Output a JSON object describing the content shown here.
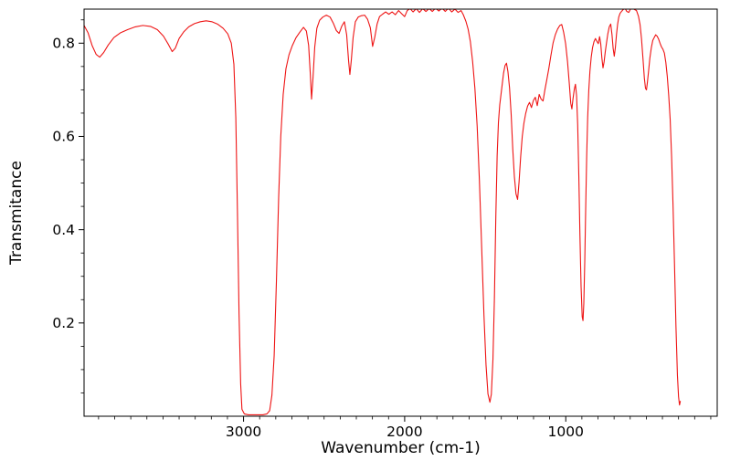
{
  "figure": {
    "background": "#ffffff",
    "frame_color": "#000000",
    "text_color": "#000000"
  },
  "chart_data": {
    "type": "line",
    "title": "",
    "xlabel": "Wavenumber (cm-1)",
    "ylabel": "Transmitance",
    "x_reversed": true,
    "xlim": [
      3990,
      60
    ],
    "ylim": [
      0,
      0.873
    ],
    "grid": false,
    "legend": "none",
    "xticks": [
      {
        "value": 3000,
        "label": "3000"
      },
      {
        "value": 2000,
        "label": "2000"
      },
      {
        "value": 1000,
        "label": "1000"
      }
    ],
    "yticks": [
      {
        "value": 0.2,
        "label": "0.2"
      },
      {
        "value": 0.4,
        "label": "0.4"
      },
      {
        "value": 0.6,
        "label": "0.6"
      },
      {
        "value": 0.8,
        "label": "0.8"
      }
    ],
    "x_minor_step": 100,
    "y_minor_step": 0.05,
    "line_color": "#ee1414",
    "series": [
      {
        "points": [
          [
            3990,
            0.838
          ],
          [
            3965,
            0.822
          ],
          [
            3940,
            0.795
          ],
          [
            3915,
            0.776
          ],
          [
            3893,
            0.77
          ],
          [
            3868,
            0.78
          ],
          [
            3840,
            0.796
          ],
          [
            3805,
            0.812
          ],
          [
            3765,
            0.822
          ],
          [
            3720,
            0.829
          ],
          [
            3672,
            0.835
          ],
          [
            3625,
            0.838
          ],
          [
            3578,
            0.836
          ],
          [
            3535,
            0.829
          ],
          [
            3497,
            0.815
          ],
          [
            3466,
            0.797
          ],
          [
            3443,
            0.782
          ],
          [
            3424,
            0.789
          ],
          [
            3400,
            0.81
          ],
          [
            3372,
            0.824
          ],
          [
            3340,
            0.835
          ],
          [
            3305,
            0.842
          ],
          [
            3268,
            0.846
          ],
          [
            3232,
            0.848
          ],
          [
            3197,
            0.846
          ],
          [
            3162,
            0.841
          ],
          [
            3127,
            0.832
          ],
          [
            3098,
            0.82
          ],
          [
            3076,
            0.8
          ],
          [
            3060,
            0.755
          ],
          [
            3048,
            0.64
          ],
          [
            3038,
            0.44
          ],
          [
            3028,
            0.22
          ],
          [
            3018,
            0.07
          ],
          [
            3010,
            0.015
          ],
          [
            2995,
            0.005
          ],
          [
            2970,
            0.003
          ],
          [
            2940,
            0.003
          ],
          [
            2910,
            0.003
          ],
          [
            2880,
            0.003
          ],
          [
            2855,
            0.005
          ],
          [
            2838,
            0.012
          ],
          [
            2824,
            0.045
          ],
          [
            2810,
            0.13
          ],
          [
            2796,
            0.29
          ],
          [
            2782,
            0.47
          ],
          [
            2769,
            0.6
          ],
          [
            2754,
            0.69
          ],
          [
            2737,
            0.745
          ],
          [
            2718,
            0.775
          ],
          [
            2697,
            0.795
          ],
          [
            2674,
            0.812
          ],
          [
            2650,
            0.824
          ],
          [
            2628,
            0.834
          ],
          [
            2610,
            0.826
          ],
          [
            2596,
            0.795
          ],
          [
            2585,
            0.73
          ],
          [
            2578,
            0.68
          ],
          [
            2569,
            0.725
          ],
          [
            2558,
            0.792
          ],
          [
            2545,
            0.832
          ],
          [
            2528,
            0.849
          ],
          [
            2508,
            0.856
          ],
          [
            2486,
            0.86
          ],
          [
            2463,
            0.856
          ],
          [
            2443,
            0.843
          ],
          [
            2424,
            0.827
          ],
          [
            2407,
            0.821
          ],
          [
            2391,
            0.836
          ],
          [
            2374,
            0.846
          ],
          [
            2360,
            0.818
          ],
          [
            2348,
            0.762
          ],
          [
            2340,
            0.733
          ],
          [
            2331,
            0.764
          ],
          [
            2320,
            0.812
          ],
          [
            2306,
            0.846
          ],
          [
            2288,
            0.856
          ],
          [
            2268,
            0.859
          ],
          [
            2248,
            0.86
          ],
          [
            2230,
            0.851
          ],
          [
            2213,
            0.833
          ],
          [
            2199,
            0.793
          ],
          [
            2186,
            0.812
          ],
          [
            2171,
            0.841
          ],
          [
            2156,
            0.857
          ],
          [
            2138,
            0.862
          ],
          [
            2118,
            0.867
          ],
          [
            2098,
            0.862
          ],
          [
            2078,
            0.867
          ],
          [
            2058,
            0.861
          ],
          [
            2038,
            0.87
          ],
          [
            2018,
            0.863
          ],
          [
            2000,
            0.857
          ],
          [
            1984,
            0.87
          ],
          [
            1966,
            0.874
          ],
          [
            1948,
            0.867
          ],
          [
            1928,
            0.874
          ],
          [
            1908,
            0.866
          ],
          [
            1888,
            0.874
          ],
          [
            1868,
            0.868
          ],
          [
            1848,
            0.874
          ],
          [
            1828,
            0.868
          ],
          [
            1808,
            0.875
          ],
          [
            1788,
            0.869
          ],
          [
            1768,
            0.875
          ],
          [
            1748,
            0.868
          ],
          [
            1728,
            0.875
          ],
          [
            1708,
            0.867
          ],
          [
            1688,
            0.873
          ],
          [
            1668,
            0.866
          ],
          [
            1650,
            0.87
          ],
          [
            1636,
            0.861
          ],
          [
            1620,
            0.847
          ],
          [
            1606,
            0.83
          ],
          [
            1592,
            0.803
          ],
          [
            1578,
            0.76
          ],
          [
            1564,
            0.703
          ],
          [
            1550,
            0.622
          ],
          [
            1536,
            0.505
          ],
          [
            1522,
            0.362
          ],
          [
            1508,
            0.218
          ],
          [
            1495,
            0.11
          ],
          [
            1483,
            0.048
          ],
          [
            1471,
            0.03
          ],
          [
            1462,
            0.047
          ],
          [
            1452,
            0.122
          ],
          [
            1443,
            0.252
          ],
          [
            1434,
            0.43
          ],
          [
            1426,
            0.558
          ],
          [
            1418,
            0.63
          ],
          [
            1410,
            0.667
          ],
          [
            1402,
            0.69
          ],
          [
            1394,
            0.713
          ],
          [
            1386,
            0.736
          ],
          [
            1377,
            0.752
          ],
          [
            1368,
            0.757
          ],
          [
            1359,
            0.739
          ],
          [
            1349,
            0.704
          ],
          [
            1339,
            0.648
          ],
          [
            1329,
            0.573
          ],
          [
            1319,
            0.514
          ],
          [
            1309,
            0.477
          ],
          [
            1299,
            0.465
          ],
          [
            1290,
            0.502
          ],
          [
            1280,
            0.556
          ],
          [
            1270,
            0.6
          ],
          [
            1260,
            0.628
          ],
          [
            1249,
            0.649
          ],
          [
            1237,
            0.665
          ],
          [
            1225,
            0.673
          ],
          [
            1213,
            0.662
          ],
          [
            1201,
            0.677
          ],
          [
            1189,
            0.684
          ],
          [
            1177,
            0.666
          ],
          [
            1165,
            0.69
          ],
          [
            1153,
            0.68
          ],
          [
            1141,
            0.676
          ],
          [
            1129,
            0.701
          ],
          [
            1117,
            0.723
          ],
          [
            1105,
            0.746
          ],
          [
            1093,
            0.772
          ],
          [
            1079,
            0.8
          ],
          [
            1065,
            0.818
          ],
          [
            1051,
            0.83
          ],
          [
            1037,
            0.838
          ],
          [
            1025,
            0.84
          ],
          [
            1013,
            0.823
          ],
          [
            1001,
            0.799
          ],
          [
            989,
            0.76
          ],
          [
            978,
            0.713
          ],
          [
            969,
            0.671
          ],
          [
            962,
            0.659
          ],
          [
            955,
            0.681
          ],
          [
            947,
            0.701
          ],
          [
            940,
            0.712
          ],
          [
            933,
            0.688
          ],
          [
            926,
            0.625
          ],
          [
            919,
            0.516
          ],
          [
            912,
            0.387
          ],
          [
            905,
            0.278
          ],
          [
            898,
            0.213
          ],
          [
            893,
            0.205
          ],
          [
            888,
            0.242
          ],
          [
            882,
            0.333
          ],
          [
            876,
            0.452
          ],
          [
            870,
            0.56
          ],
          [
            864,
            0.641
          ],
          [
            857,
            0.7
          ],
          [
            850,
            0.74
          ],
          [
            842,
            0.77
          ],
          [
            834,
            0.79
          ],
          [
            825,
            0.803
          ],
          [
            816,
            0.81
          ],
          [
            807,
            0.804
          ],
          [
            798,
            0.799
          ],
          [
            790,
            0.814
          ],
          [
            783,
            0.799
          ],
          [
            776,
            0.769
          ],
          [
            769,
            0.747
          ],
          [
            762,
            0.76
          ],
          [
            755,
            0.781
          ],
          [
            747,
            0.801
          ],
          [
            739,
            0.82
          ],
          [
            730,
            0.835
          ],
          [
            721,
            0.841
          ],
          [
            713,
            0.818
          ],
          [
            706,
            0.789
          ],
          [
            699,
            0.772
          ],
          [
            692,
            0.791
          ],
          [
            685,
            0.819
          ],
          [
            678,
            0.841
          ],
          [
            671,
            0.856
          ],
          [
            663,
            0.864
          ],
          [
            654,
            0.868
          ],
          [
            644,
            0.872
          ],
          [
            633,
            0.875
          ],
          [
            621,
            0.868
          ],
          [
            609,
            0.866
          ],
          [
            597,
            0.874
          ],
          [
            585,
            0.875
          ],
          [
            573,
            0.872
          ],
          [
            561,
            0.87
          ],
          [
            549,
            0.858
          ],
          [
            539,
            0.84
          ],
          [
            530,
            0.81
          ],
          [
            521,
            0.768
          ],
          [
            512,
            0.724
          ],
          [
            505,
            0.703
          ],
          [
            499,
            0.7
          ],
          [
            493,
            0.717
          ],
          [
            486,
            0.74
          ],
          [
            478,
            0.768
          ],
          [
            469,
            0.79
          ],
          [
            460,
            0.806
          ],
          [
            451,
            0.812
          ],
          [
            442,
            0.818
          ],
          [
            433,
            0.815
          ],
          [
            424,
            0.809
          ],
          [
            415,
            0.8
          ],
          [
            406,
            0.792
          ],
          [
            397,
            0.787
          ],
          [
            388,
            0.779
          ],
          [
            379,
            0.759
          ],
          [
            370,
            0.729
          ],
          [
            361,
            0.688
          ],
          [
            352,
            0.637
          ],
          [
            343,
            0.556
          ],
          [
            334,
            0.45
          ],
          [
            325,
            0.325
          ],
          [
            316,
            0.192
          ],
          [
            307,
            0.088
          ],
          [
            300,
            0.042
          ],
          [
            294,
            0.024
          ],
          [
            289,
            0.032
          ]
        ]
      }
    ]
  }
}
